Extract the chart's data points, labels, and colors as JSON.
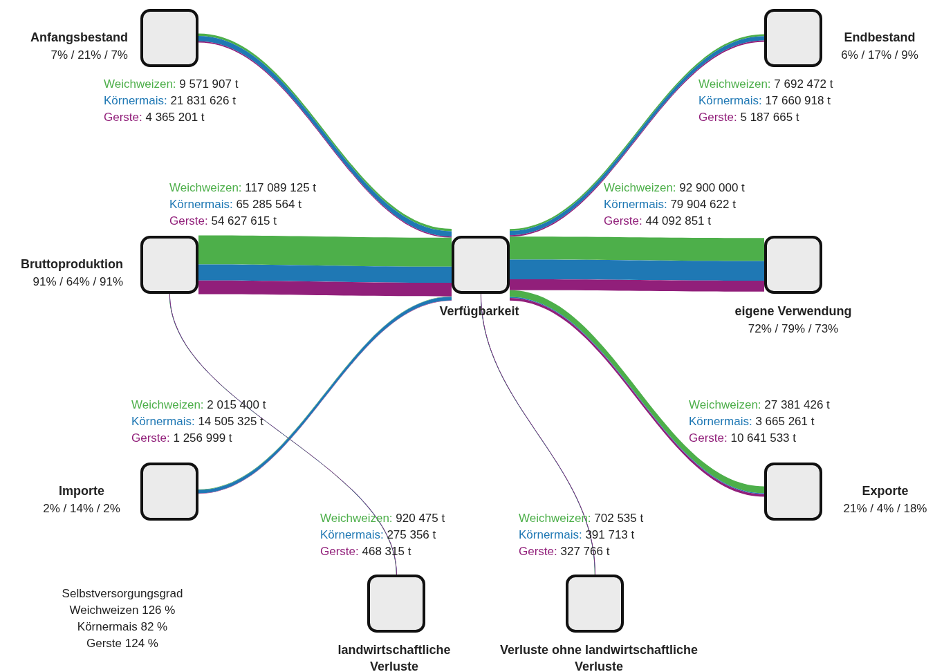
{
  "chart_data": {
    "type": "other",
    "categories": [
      "Anfangsbestand",
      "Bruttoproduktion",
      "Importe",
      "Verfügbarkeit",
      "Endbestand",
      "eigene Verwendung",
      "Exporte",
      "landwirtschaftliche Verluste",
      "Verluste ohne landwirtschaftliche Verluste"
    ],
    "series": [
      {
        "name": "Weichweizen:",
        "color": "#4daf4a",
        "values": [
          9571907,
          117089125,
          2015400,
          null,
          7692472,
          92900000,
          27381426,
          920475,
          702535
        ],
        "value_labels": [
          "9 571 907 t",
          "117 089 125 t",
          "2 015 400 t",
          null,
          "7 692 472 t",
          "92 900 000 t",
          "27 381 426 t",
          "920 475 t",
          "702 535 t"
        ]
      },
      {
        "name": "Körnermais:",
        "color": "#1f78b4",
        "values": [
          21831626,
          65285564,
          14505325,
          null,
          17660918,
          79904622,
          3665261,
          275356,
          391713
        ],
        "value_labels": [
          "21 831 626 t",
          "65 285 564 t",
          "14 505 325 t",
          null,
          "17 660 918 t",
          "79 904 622 t",
          "3 665 261 t",
          "275 356 t",
          "391 713 t"
        ]
      },
      {
        "name": "Gerste:",
        "color": "#911f7a",
        "values": [
          4365201,
          54627615,
          1256999,
          null,
          5187665,
          44092851,
          10641533,
          468315,
          327766
        ],
        "value_labels": [
          "4 365 201 t",
          "54 627 615 t",
          "1 256 999 t",
          null,
          "5 187 665 t",
          "44 092 851 t",
          "10 641 533 t",
          "468 315 t",
          "327 766 t"
        ]
      }
    ],
    "annotations": [
      {
        "text": "7% / 21% / 7%",
        "x": "Anfangsbestand"
      },
      {
        "text": "91% / 64% / 91%",
        "x": "Bruttoproduktion"
      },
      {
        "text": "2% / 14% / 2%",
        "x": "Importe"
      },
      {
        "text": "6% / 17% / 9%",
        "x": "Endbestand"
      },
      {
        "text": "72% / 79% / 73%",
        "x": "eigene Verwendung"
      },
      {
        "text": "21% / 4% / 18%",
        "x": "Exporte"
      },
      "Selbstversorgungsgrad",
      "Weichweizen 126 %",
      "Körnermais 82 %",
      "Gerste 124 %"
    ]
  }
}
